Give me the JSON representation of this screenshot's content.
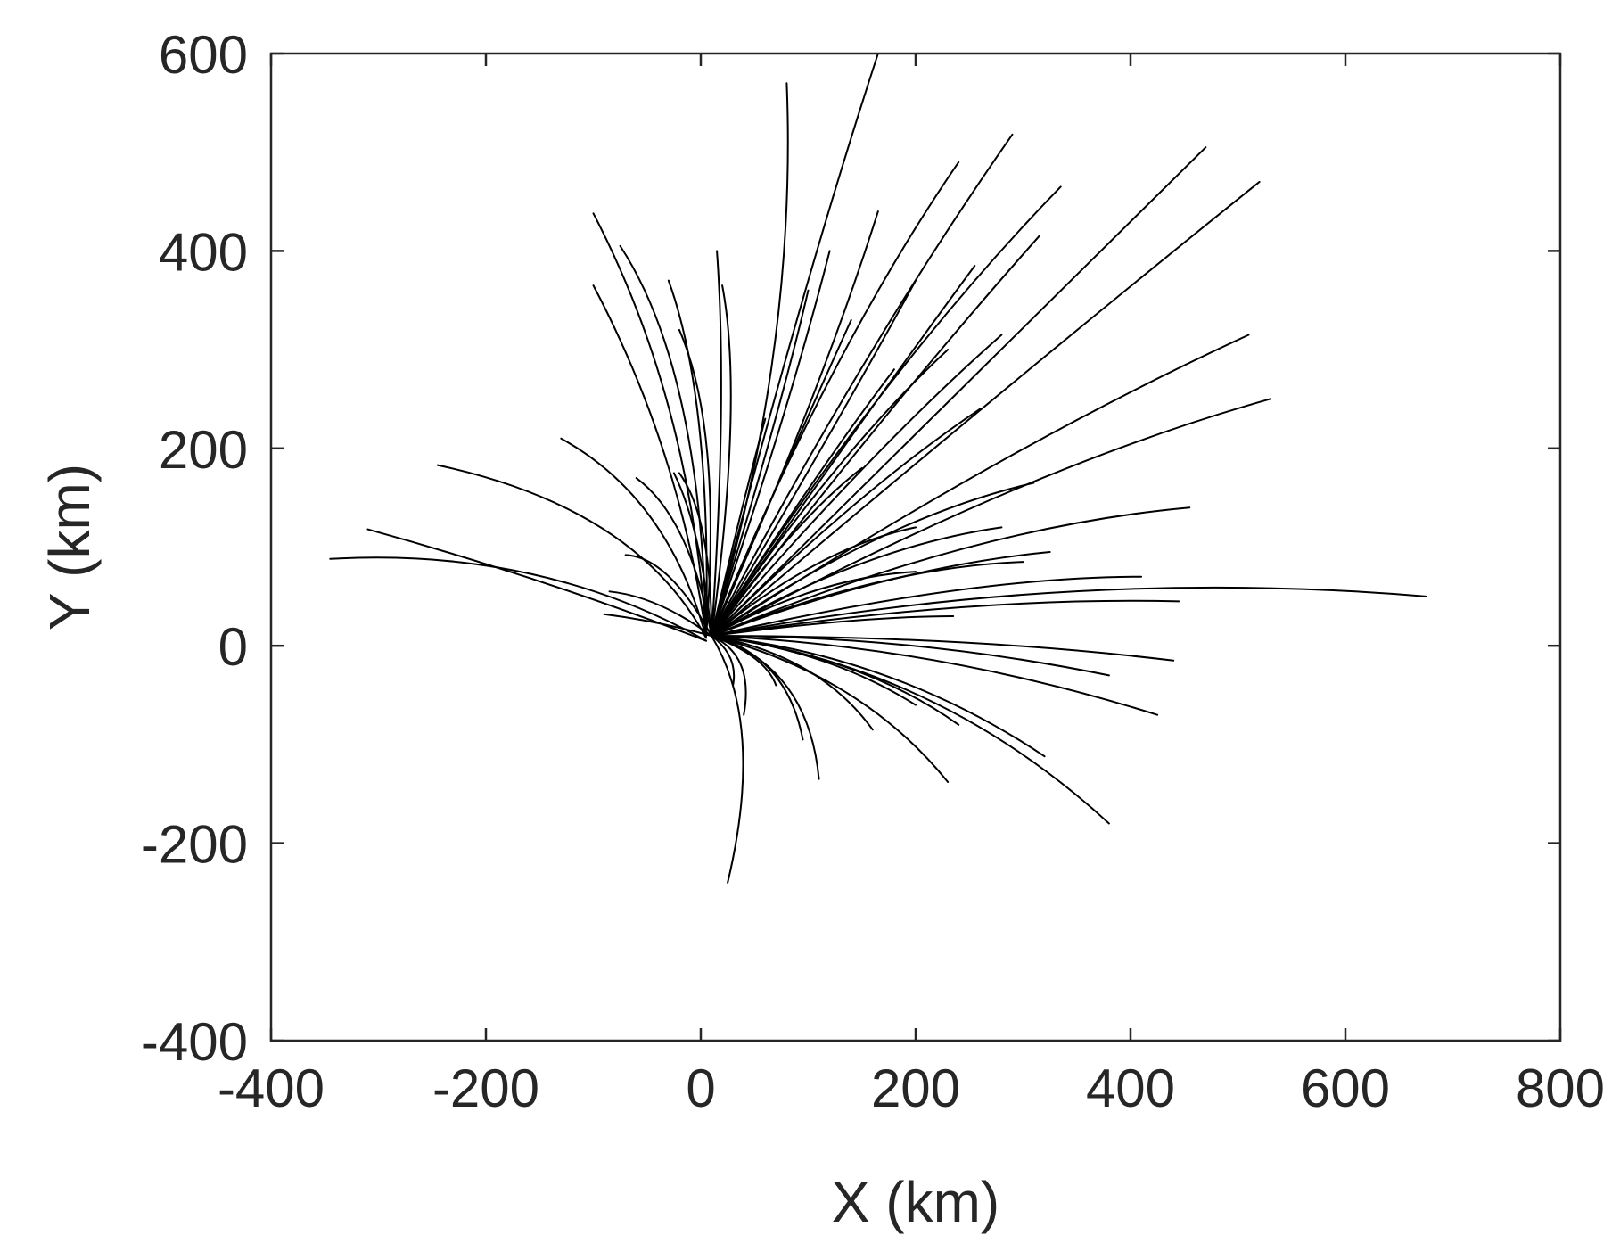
{
  "chart_data": {
    "type": "line",
    "title": "",
    "xlabel": "X (km)",
    "ylabel": "Y (km)",
    "xlim": [
      -400,
      800
    ],
    "ylim": [
      -400,
      600
    ],
    "xticks": [
      -400,
      -200,
      0,
      200,
      400,
      600,
      800
    ],
    "yticks": [
      -400,
      -200,
      0,
      200,
      400,
      600
    ],
    "xtick_labels": [
      "-400",
      "-200",
      "0",
      "200",
      "400",
      "600",
      "800"
    ],
    "ytick_labels": [
      "-400",
      "-200",
      "0",
      "200",
      "400",
      "600"
    ],
    "grid": false,
    "legend": "none",
    "line_color": "#000000",
    "series": [
      {
        "start": [
          5,
          5
        ],
        "end": [
          -345,
          88
        ],
        "ctrl": [
          -150,
          100
        ]
      },
      {
        "start": [
          5,
          5
        ],
        "end": [
          -310,
          118
        ],
        "ctrl": [
          -150,
          70
        ]
      },
      {
        "start": [
          5,
          8
        ],
        "end": [
          -245,
          183
        ],
        "ctrl": [
          -60,
          140
        ]
      },
      {
        "start": [
          5,
          8
        ],
        "end": [
          -130,
          210
        ],
        "ctrl": [
          -30,
          150
        ]
      },
      {
        "start": [
          5,
          10
        ],
        "end": [
          -100,
          438
        ],
        "ctrl": [
          -10,
          250
        ]
      },
      {
        "start": [
          5,
          10
        ],
        "end": [
          -100,
          365
        ],
        "ctrl": [
          -20,
          200
        ]
      },
      {
        "start": [
          5,
          10
        ],
        "end": [
          -75,
          405
        ],
        "ctrl": [
          0,
          280
        ]
      },
      {
        "start": [
          5,
          10
        ],
        "end": [
          -30,
          370
        ],
        "ctrl": [
          10,
          250
        ]
      },
      {
        "start": [
          5,
          10
        ],
        "end": [
          -20,
          320
        ],
        "ctrl": [
          20,
          220
        ]
      },
      {
        "start": [
          10,
          10
        ],
        "end": [
          15,
          400
        ],
        "ctrl": [
          25,
          250
        ]
      },
      {
        "start": [
          10,
          10
        ],
        "end": [
          20,
          365
        ],
        "ctrl": [
          40,
          250
        ]
      },
      {
        "start": [
          10,
          10
        ],
        "end": [
          80,
          570
        ],
        "ctrl": [
          90,
          300
        ]
      },
      {
        "start": [
          10,
          10
        ],
        "end": [
          165,
          600
        ],
        "ctrl": [
          90,
          350
        ]
      },
      {
        "start": [
          10,
          10
        ],
        "end": [
          240,
          490
        ],
        "ctrl": [
          120,
          300
        ]
      },
      {
        "start": [
          10,
          10
        ],
        "end": [
          290,
          518
        ],
        "ctrl": [
          150,
          300
        ]
      },
      {
        "start": [
          10,
          10
        ],
        "end": [
          335,
          465
        ],
        "ctrl": [
          170,
          280
        ]
      },
      {
        "start": [
          10,
          10
        ],
        "end": [
          470,
          505
        ],
        "ctrl": [
          260,
          280
        ]
      },
      {
        "start": [
          10,
          10
        ],
        "end": [
          520,
          470
        ],
        "ctrl": [
          280,
          260
        ]
      },
      {
        "start": [
          10,
          10
        ],
        "end": [
          510,
          315
        ],
        "ctrl": [
          280,
          200
        ]
      },
      {
        "start": [
          10,
          10
        ],
        "end": [
          530,
          250
        ],
        "ctrl": [
          300,
          180
        ]
      },
      {
        "start": [
          10,
          10
        ],
        "end": [
          455,
          140
        ],
        "ctrl": [
          250,
          120
        ]
      },
      {
        "start": [
          10,
          10
        ],
        "end": [
          675,
          50
        ],
        "ctrl": [
          350,
          80
        ]
      },
      {
        "start": [
          10,
          10
        ],
        "end": [
          445,
          45
        ],
        "ctrl": [
          250,
          50
        ]
      },
      {
        "start": [
          10,
          10
        ],
        "end": [
          440,
          -15
        ],
        "ctrl": [
          250,
          10
        ]
      },
      {
        "start": [
          10,
          10
        ],
        "end": [
          425,
          -70
        ],
        "ctrl": [
          220,
          0
        ]
      },
      {
        "start": [
          10,
          10
        ],
        "end": [
          380,
          -180
        ],
        "ctrl": [
          220,
          -20
        ]
      },
      {
        "start": [
          10,
          10
        ],
        "end": [
          320,
          -112
        ],
        "ctrl": [
          180,
          -10
        ]
      },
      {
        "start": [
          10,
          10
        ],
        "end": [
          230,
          -138
        ],
        "ctrl": [
          150,
          -30
        ]
      },
      {
        "start": [
          10,
          10
        ],
        "end": [
          160,
          -85
        ],
        "ctrl": [
          110,
          -10
        ]
      },
      {
        "start": [
          10,
          10
        ],
        "end": [
          110,
          -135
        ],
        "ctrl": [
          100,
          -20
        ]
      },
      {
        "start": [
          10,
          10
        ],
        "end": [
          95,
          -95
        ],
        "ctrl": [
          80,
          -10
        ]
      },
      {
        "start": [
          10,
          10
        ],
        "end": [
          40,
          -70
        ],
        "ctrl": [
          50,
          -10
        ]
      },
      {
        "start": [
          10,
          10
        ],
        "end": [
          25,
          -240
        ],
        "ctrl": [
          60,
          -80
        ]
      },
      {
        "start": [
          10,
          10
        ],
        "end": [
          30,
          -40
        ],
        "ctrl": [
          35,
          -10
        ]
      },
      {
        "start": [
          10,
          10
        ],
        "end": [
          -90,
          32
        ],
        "ctrl": [
          -40,
          25
        ]
      },
      {
        "start": [
          10,
          10
        ],
        "end": [
          -85,
          55
        ],
        "ctrl": [
          -40,
          50
        ]
      },
      {
        "start": [
          10,
          10
        ],
        "end": [
          -70,
          92
        ],
        "ctrl": [
          -30,
          90
        ]
      },
      {
        "start": [
          10,
          10
        ],
        "end": [
          -60,
          170
        ],
        "ctrl": [
          -10,
          130
        ]
      },
      {
        "start": [
          10,
          10
        ],
        "end": [
          -20,
          175
        ],
        "ctrl": [
          10,
          130
        ]
      },
      {
        "start": [
          10,
          10
        ],
        "end": [
          120,
          400
        ],
        "ctrl": [
          80,
          230
        ]
      },
      {
        "start": [
          10,
          10
        ],
        "end": [
          165,
          440
        ],
        "ctrl": [
          110,
          250
        ]
      },
      {
        "start": [
          10,
          10
        ],
        "end": [
          200,
          370
        ],
        "ctrl": [
          130,
          230
        ]
      },
      {
        "start": [
          10,
          10
        ],
        "end": [
          255,
          385
        ],
        "ctrl": [
          150,
          230
        ]
      },
      {
        "start": [
          10,
          10
        ],
        "end": [
          280,
          315
        ],
        "ctrl": [
          160,
          200
        ]
      },
      {
        "start": [
          10,
          10
        ],
        "end": [
          315,
          415
        ],
        "ctrl": [
          180,
          250
        ]
      },
      {
        "start": [
          10,
          10
        ],
        "end": [
          310,
          165
        ],
        "ctrl": [
          170,
          130
        ]
      },
      {
        "start": [
          10,
          10
        ],
        "end": [
          300,
          85
        ],
        "ctrl": [
          170,
          80
        ]
      },
      {
        "start": [
          10,
          10
        ],
        "end": [
          325,
          95
        ],
        "ctrl": [
          180,
          80
        ]
      },
      {
        "start": [
          10,
          10
        ],
        "end": [
          410,
          70
        ],
        "ctrl": [
          250,
          70
        ]
      },
      {
        "start": [
          10,
          10
        ],
        "end": [
          380,
          -30
        ],
        "ctrl": [
          200,
          10
        ]
      },
      {
        "start": [
          10,
          10
        ],
        "end": [
          240,
          -80
        ],
        "ctrl": [
          150,
          -10
        ]
      },
      {
        "start": [
          10,
          10
        ],
        "end": [
          200,
          -60
        ],
        "ctrl": [
          120,
          -5
        ]
      },
      {
        "start": [
          10,
          10
        ],
        "end": [
          235,
          30
        ],
        "ctrl": [
          150,
          30
        ]
      },
      {
        "start": [
          10,
          10
        ],
        "end": [
          260,
          240
        ],
        "ctrl": [
          150,
          160
        ]
      },
      {
        "start": [
          10,
          10
        ],
        "end": [
          230,
          300
        ],
        "ctrl": [
          130,
          200
        ]
      },
      {
        "start": [
          10,
          10
        ],
        "end": [
          180,
          280
        ],
        "ctrl": [
          110,
          180
        ]
      },
      {
        "start": [
          10,
          10
        ],
        "end": [
          140,
          330
        ],
        "ctrl": [
          90,
          210
        ]
      },
      {
        "start": [
          10,
          10
        ],
        "end": [
          100,
          360
        ],
        "ctrl": [
          70,
          220
        ]
      },
      {
        "start": [
          10,
          10
        ],
        "end": [
          60,
          230
        ],
        "ctrl": [
          40,
          150
        ]
      },
      {
        "start": [
          10,
          10
        ],
        "end": [
          200,
          120
        ],
        "ctrl": [
          110,
          100
        ]
      },
      {
        "start": [
          10,
          10
        ],
        "end": [
          280,
          120
        ],
        "ctrl": [
          150,
          100
        ]
      },
      {
        "start": [
          10,
          10
        ],
        "end": [
          200,
          75
        ],
        "ctrl": [
          110,
          70
        ]
      },
      {
        "start": [
          10,
          10
        ],
        "end": [
          150,
          180
        ],
        "ctrl": [
          90,
          130
        ]
      },
      {
        "start": [
          10,
          10
        ],
        "end": [
          -25,
          175
        ],
        "ctrl": [
          0,
          120
        ]
      },
      {
        "start": [
          10,
          10
        ],
        "end": [
          70,
          -40
        ],
        "ctrl": [
          60,
          -10
        ]
      }
    ]
  }
}
